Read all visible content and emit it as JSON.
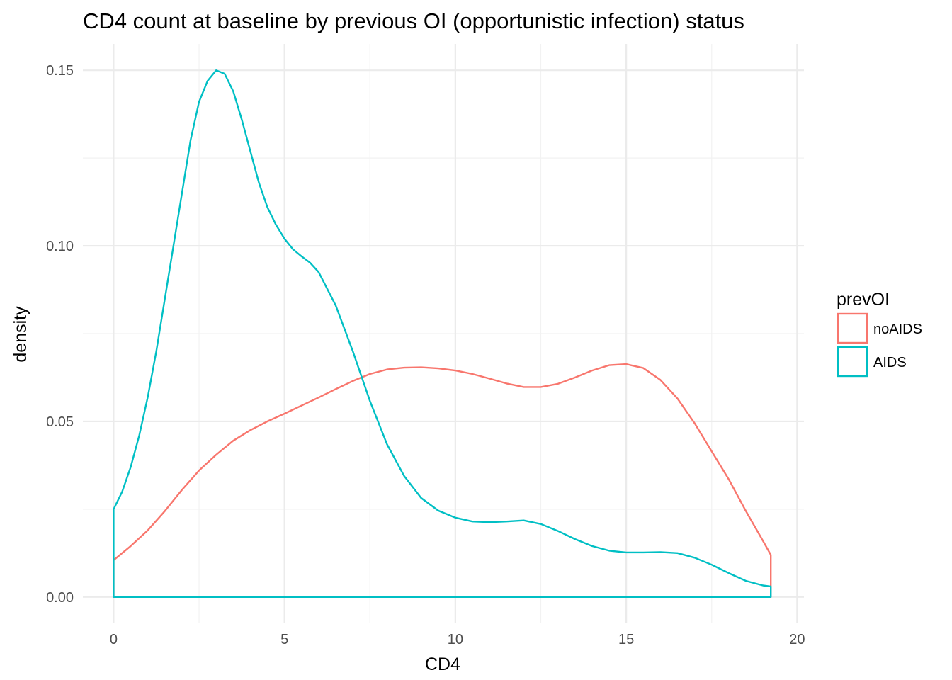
{
  "chart_data": {
    "type": "line",
    "subtype": "density",
    "title": "CD4 count at baseline by previous OI (opportunistic infection) status",
    "xlabel": "CD4",
    "ylabel": "density",
    "xlim": [
      -0.9,
      20.2
    ],
    "ylim": [
      -0.0075,
      0.1575
    ],
    "x_ticks": [
      0,
      5,
      10,
      15,
      20
    ],
    "x_tick_labels": [
      "0",
      "5",
      "10",
      "15",
      "20"
    ],
    "y_ticks": [
      0.0,
      0.05,
      0.1,
      0.15
    ],
    "y_tick_labels": [
      "0.00",
      "0.05",
      "0.10",
      "0.15"
    ],
    "grid": true,
    "theme": "minimal",
    "legend": {
      "title": "prevOI",
      "position": "right"
    },
    "series": [
      {
        "name": "noAIDS",
        "color": "#F8766D",
        "x": [
          0,
          0.5,
          1,
          1.5,
          2,
          2.5,
          3,
          3.5,
          4,
          4.5,
          5,
          5.5,
          6,
          6.5,
          7,
          7.5,
          8,
          8.5,
          9,
          9.5,
          10,
          10.5,
          11,
          11.5,
          12,
          12.5,
          13,
          13.5,
          14,
          14.5,
          15,
          15.5,
          16,
          16.5,
          17,
          17.5,
          18,
          18.5,
          19,
          19.23
        ],
        "y": [
          0.0105,
          0.0145,
          0.019,
          0.0245,
          0.0305,
          0.036,
          0.0405,
          0.0445,
          0.0475,
          0.05,
          0.0522,
          0.0545,
          0.0568,
          0.0592,
          0.0615,
          0.0635,
          0.0648,
          0.0653,
          0.0654,
          0.0651,
          0.0645,
          0.0635,
          0.0622,
          0.0608,
          0.0598,
          0.0598,
          0.0607,
          0.0625,
          0.0645,
          0.066,
          0.0663,
          0.0652,
          0.0618,
          0.0565,
          0.0495,
          0.0415,
          0.0335,
          0.0245,
          0.016,
          0.012
        ],
        "closed_baseline": true
      },
      {
        "name": "AIDS",
        "color": "#00BFC4",
        "x": [
          0,
          0.25,
          0.5,
          0.75,
          1,
          1.25,
          1.5,
          1.75,
          2,
          2.25,
          2.5,
          2.75,
          3,
          3.25,
          3.5,
          3.75,
          4,
          4.25,
          4.5,
          4.75,
          5,
          5.25,
          5.5,
          5.75,
          6,
          6.5,
          7,
          7.5,
          8,
          8.5,
          9,
          9.5,
          10,
          10.5,
          11,
          11.5,
          12,
          12.5,
          13,
          13.5,
          14,
          14.5,
          15,
          15.5,
          16,
          16.5,
          17,
          17.5,
          18,
          18.5,
          19,
          19.23
        ],
        "y": [
          0.025,
          0.03,
          0.037,
          0.046,
          0.057,
          0.07,
          0.085,
          0.1,
          0.115,
          0.13,
          0.141,
          0.147,
          0.15,
          0.149,
          0.144,
          0.136,
          0.127,
          0.118,
          0.111,
          0.106,
          0.102,
          0.099,
          0.097,
          0.0952,
          0.0925,
          0.083,
          0.07,
          0.0558,
          0.0435,
          0.0345,
          0.0282,
          0.0246,
          0.0226,
          0.0215,
          0.0213,
          0.0215,
          0.0218,
          0.0208,
          0.0188,
          0.0165,
          0.0145,
          0.0132,
          0.0127,
          0.0127,
          0.0128,
          0.0125,
          0.0112,
          0.0092,
          0.0068,
          0.0046,
          0.0033,
          0.003
        ],
        "closed_baseline": true
      }
    ]
  }
}
